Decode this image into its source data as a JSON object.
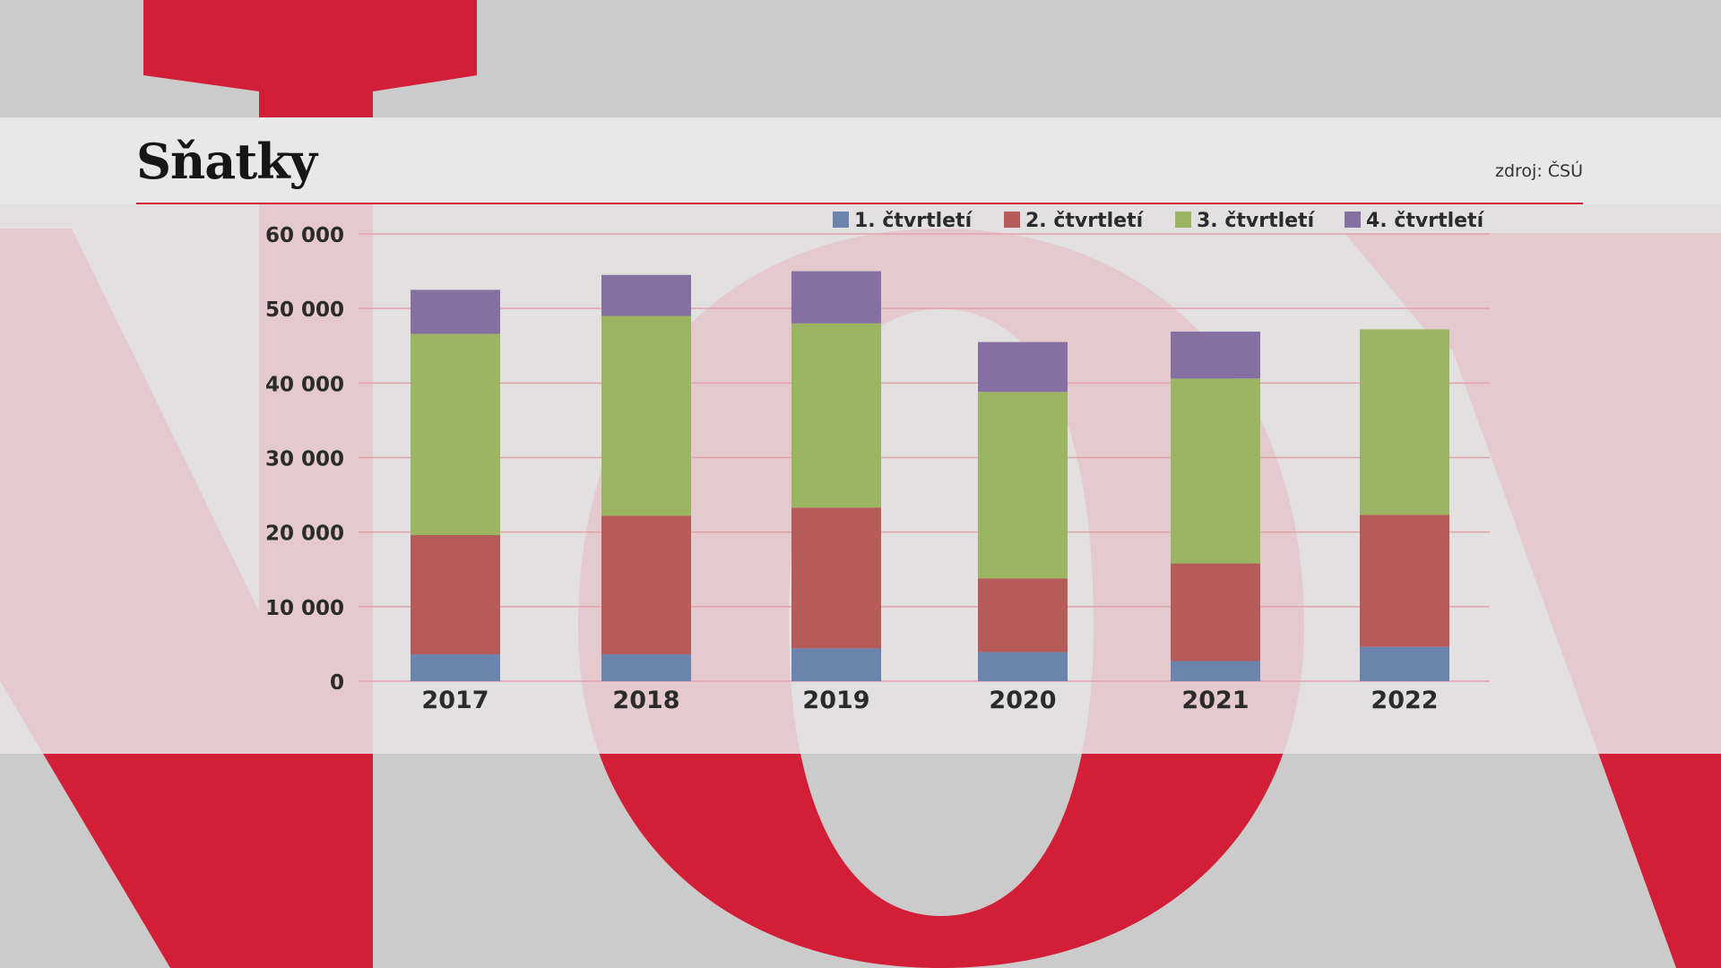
{
  "header": {
    "title": "Sňatky",
    "source": "zdroj: ČSÚ"
  },
  "colors": {
    "brand_red": "#d21e37",
    "background": "#cbcbcb",
    "gridline": "#e2a3ab"
  },
  "chart_data": {
    "type": "bar",
    "stacked": true,
    "categories": [
      "2017",
      "2018",
      "2019",
      "2020",
      "2021",
      "2022"
    ],
    "series": [
      {
        "name": "1. čtvrtletí",
        "color": "#6a84ad",
        "values": [
          3600,
          3600,
          4400,
          3900,
          2700,
          4600
        ]
      },
      {
        "name": "2. čtvrtletí",
        "color": "#b55b5a",
        "values": [
          16000,
          18600,
          18900,
          9900,
          13100,
          17700
        ]
      },
      {
        "name": "3. čtvrtletí",
        "color": "#9bb563",
        "values": [
          27000,
          26800,
          24700,
          25000,
          24800,
          24900
        ]
      },
      {
        "name": "4. čtvrtletí",
        "color": "#8570a1",
        "values": [
          5900,
          5500,
          7000,
          6700,
          6300,
          0
        ]
      }
    ],
    "yticks": [
      "0",
      "10 000",
      "20 000",
      "30 000",
      "40 000",
      "50 000",
      "60 000"
    ],
    "ylim": [
      0,
      60000
    ],
    "grid": true,
    "legend_position": "top-right"
  }
}
